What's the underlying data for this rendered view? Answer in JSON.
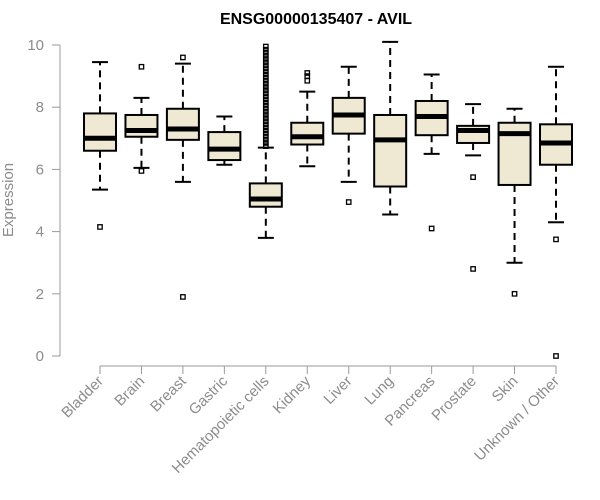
{
  "chart_data": {
    "type": "boxplot",
    "title": "ENSG00000135407 - AVIL",
    "ylabel": "Expression",
    "xlabel": "",
    "ylim": [
      0,
      10
    ],
    "yticks": [
      0,
      2,
      4,
      6,
      8,
      10
    ],
    "grid": false,
    "box_fill": "#efe9d3",
    "categories": [
      "Bladder",
      "Brain",
      "Breast",
      "Gastric",
      "Hematopoietic cells",
      "Kidney",
      "Liver",
      "Lung",
      "Pancreas",
      "Prostate",
      "Skin",
      "Unknown / Other"
    ],
    "boxes": [
      {
        "whisker_low": 5.35,
        "q1": 6.6,
        "median": 7.0,
        "q3": 7.8,
        "whisker_high": 9.45,
        "outliers": [
          4.15
        ]
      },
      {
        "whisker_low": 6.05,
        "q1": 7.05,
        "median": 7.25,
        "q3": 7.75,
        "whisker_high": 8.3,
        "outliers": [
          9.3,
          5.95
        ]
      },
      {
        "whisker_low": 5.6,
        "q1": 6.95,
        "median": 7.3,
        "q3": 7.95,
        "whisker_high": 9.4,
        "outliers": [
          9.6,
          1.9
        ]
      },
      {
        "whisker_low": 6.15,
        "q1": 6.3,
        "median": 6.65,
        "q3": 7.2,
        "whisker_high": 7.7,
        "outliers": []
      },
      {
        "whisker_low": 3.8,
        "q1": 4.8,
        "median": 5.05,
        "q3": 5.55,
        "whisker_high": 6.7,
        "outliers": [
          6.75,
          6.85,
          6.95,
          7.05,
          7.15,
          7.25,
          7.35,
          7.45,
          7.55,
          7.65,
          7.75,
          7.85,
          7.95,
          8.05,
          8.15,
          8.25,
          8.35,
          8.45,
          8.55,
          8.65,
          8.75,
          8.85,
          8.95,
          9.05,
          9.15,
          9.25,
          9.35,
          9.45,
          9.55,
          9.65,
          9.75,
          9.85,
          9.95
        ]
      },
      {
        "whisker_low": 6.1,
        "q1": 6.8,
        "median": 7.05,
        "q3": 7.5,
        "whisker_high": 8.5,
        "outliers": [
          8.85,
          9.0,
          9.1
        ]
      },
      {
        "whisker_low": 5.6,
        "q1": 7.15,
        "median": 7.75,
        "q3": 8.3,
        "whisker_high": 9.3,
        "outliers": [
          4.95
        ]
      },
      {
        "whisker_low": 4.55,
        "q1": 5.45,
        "median": 6.95,
        "q3": 7.75,
        "whisker_high": 10.1,
        "outliers": []
      },
      {
        "whisker_low": 6.5,
        "q1": 7.1,
        "median": 7.7,
        "q3": 8.2,
        "whisker_high": 9.05,
        "outliers": [
          4.1
        ]
      },
      {
        "whisker_low": 6.45,
        "q1": 6.85,
        "median": 7.25,
        "q3": 7.4,
        "whisker_high": 8.1,
        "outliers": [
          5.75,
          2.8
        ]
      },
      {
        "whisker_low": 3.0,
        "q1": 5.5,
        "median": 7.15,
        "q3": 7.5,
        "whisker_high": 7.95,
        "outliers": [
          2.0
        ]
      },
      {
        "whisker_low": 4.3,
        "q1": 6.15,
        "median": 6.85,
        "q3": 7.45,
        "whisker_high": 9.3,
        "outliers": [
          3.75,
          0.0
        ]
      }
    ]
  }
}
